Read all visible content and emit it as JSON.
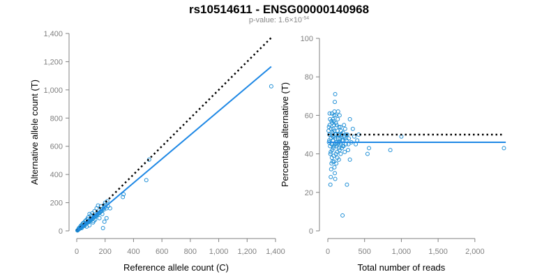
{
  "title": "rs10514611 - ENSG00000140968",
  "subtitle": {
    "prefix": "p-value: 1.6×10",
    "exponent": "-54"
  },
  "colors": {
    "point": "#1f8fd6",
    "fit": "#1e88e5",
    "reference": "#000000",
    "axis": "#808080"
  },
  "chart_data": [
    {
      "type": "scatter",
      "name": "allele-counts",
      "xlabel": "Reference allele count (C)",
      "ylabel": "Alternative allele count (T)",
      "xlim": [
        0,
        1400
      ],
      "ylim": [
        0,
        1400
      ],
      "xticks": [
        0,
        200,
        400,
        600,
        800,
        1000,
        1200,
        1400
      ],
      "xtick_labels": [
        "0",
        "200",
        "400",
        "600",
        "800",
        "1,000",
        "1,200",
        "1,400"
      ],
      "yticks": [
        0,
        200,
        400,
        600,
        800,
        1000,
        1200,
        1400
      ],
      "ytick_labels": [
        "0",
        "200",
        "400",
        "600",
        "800",
        "1,000",
        "1,200",
        "1,400"
      ],
      "reference_line": {
        "style": "dotted",
        "x": [
          0,
          1370
        ],
        "y": [
          0,
          1370
        ]
      },
      "fit_line": {
        "style": "solid",
        "x": [
          0,
          1370
        ],
        "y": [
          0,
          1165
        ]
      },
      "points": [
        [
          1370,
          1025
        ],
        [
          490,
          360
        ],
        [
          510,
          505
        ],
        [
          325,
          240
        ],
        [
          330,
          260
        ],
        [
          215,
          210
        ],
        [
          200,
          200
        ],
        [
          220,
          175
        ],
        [
          235,
          160
        ],
        [
          190,
          150
        ],
        [
          170,
          140
        ],
        [
          210,
          90
        ],
        [
          195,
          65
        ],
        [
          185,
          20
        ],
        [
          160,
          130
        ],
        [
          150,
          120
        ],
        [
          140,
          110
        ],
        [
          130,
          100
        ],
        [
          120,
          95
        ],
        [
          110,
          90
        ],
        [
          100,
          80
        ],
        [
          95,
          70
        ],
        [
          90,
          75
        ],
        [
          85,
          65
        ],
        [
          80,
          60
        ],
        [
          75,
          62
        ],
        [
          70,
          55
        ],
        [
          65,
          50
        ],
        [
          60,
          48
        ],
        [
          55,
          44
        ],
        [
          50,
          40
        ],
        [
          45,
          36
        ],
        [
          40,
          32
        ],
        [
          35,
          28
        ],
        [
          30,
          25
        ],
        [
          25,
          20
        ],
        [
          20,
          16
        ],
        [
          15,
          12
        ],
        [
          12,
          9
        ],
        [
          10,
          8
        ],
        [
          8,
          6
        ],
        [
          6,
          4
        ],
        [
          5,
          3
        ],
        [
          18,
          14
        ],
        [
          22,
          17
        ],
        [
          28,
          21
        ],
        [
          32,
          26
        ],
        [
          38,
          30
        ],
        [
          42,
          34
        ],
        [
          48,
          39
        ],
        [
          52,
          41
        ],
        [
          58,
          46
        ],
        [
          62,
          50
        ],
        [
          68,
          54
        ],
        [
          72,
          57
        ],
        [
          78,
          63
        ],
        [
          82,
          66
        ],
        [
          88,
          70
        ],
        [
          92,
          74
        ],
        [
          98,
          78
        ],
        [
          105,
          83
        ],
        [
          115,
          92
        ],
        [
          125,
          100
        ],
        [
          135,
          108
        ],
        [
          145,
          116
        ],
        [
          155,
          124
        ],
        [
          165,
          132
        ],
        [
          175,
          140
        ],
        [
          180,
          155
        ],
        [
          190,
          160
        ],
        [
          200,
          170
        ],
        [
          120,
          70
        ],
        [
          100,
          110
        ],
        [
          80,
          95
        ],
        [
          60,
          70
        ],
        [
          50,
          58
        ],
        [
          40,
          48
        ],
        [
          30,
          38
        ],
        [
          130,
          80
        ],
        [
          140,
          160
        ],
        [
          110,
          125
        ],
        [
          90,
          40
        ],
        [
          70,
          30
        ],
        [
          45,
          55
        ],
        [
          35,
          20
        ],
        [
          25,
          30
        ],
        [
          15,
          20
        ],
        [
          160,
          90
        ],
        [
          150,
          180
        ],
        [
          170,
          175
        ],
        [
          180,
          120
        ],
        [
          90,
          120
        ],
        [
          115,
          60
        ],
        [
          75,
          85
        ],
        [
          55,
          35
        ],
        [
          65,
          75
        ],
        [
          105,
          100
        ],
        [
          125,
          140
        ],
        [
          200,
          185
        ],
        [
          210,
          160
        ]
      ]
    },
    {
      "type": "scatter",
      "name": "percentage-alternative",
      "xlabel": "Total number of reads",
      "ylabel": "Percentage alternative (T)",
      "xlim": [
        0,
        2400
      ],
      "ylim": [
        0,
        100
      ],
      "xticks": [
        0,
        500,
        1000,
        1500,
        2000
      ],
      "xtick_labels": [
        "0",
        "500",
        "1,000",
        "1,500",
        "2,000"
      ],
      "yticks": [
        0,
        20,
        40,
        60,
        80,
        100
      ],
      "ytick_labels": [
        "0",
        "20",
        "40",
        "60",
        "80",
        "100"
      ],
      "reference_line": {
        "style": "dotted",
        "x": [
          0,
          2380
        ],
        "y": [
          50,
          50
        ]
      },
      "fit_line": {
        "style": "solid",
        "x": [
          0,
          2420
        ],
        "y": [
          46,
          46
        ]
      },
      "points": [
        [
          2395,
          43
        ],
        [
          1000,
          49
        ],
        [
          850,
          42
        ],
        [
          560,
          43
        ],
        [
          540,
          40
        ],
        [
          420,
          50
        ],
        [
          400,
          47
        ],
        [
          380,
          45
        ],
        [
          360,
          49
        ],
        [
          340,
          53
        ],
        [
          320,
          46
        ],
        [
          300,
          58
        ],
        [
          300,
          37
        ],
        [
          280,
          45
        ],
        [
          260,
          24
        ],
        [
          250,
          50
        ],
        [
          240,
          48
        ],
        [
          230,
          41
        ],
        [
          220,
          55
        ],
        [
          210,
          47
        ],
        [
          200,
          8
        ],
        [
          200,
          44
        ],
        [
          190,
          50
        ],
        [
          180,
          52
        ],
        [
          170,
          46
        ],
        [
          160,
          60
        ],
        [
          150,
          43
        ],
        [
          140,
          48
        ],
        [
          130,
          38
        ],
        [
          120,
          55
        ],
        [
          110,
          50
        ],
        [
          100,
          71
        ],
        [
          95,
          67
        ],
        [
          90,
          62
        ],
        [
          85,
          60
        ],
        [
          80,
          57
        ],
        [
          75,
          53
        ],
        [
          70,
          49
        ],
        [
          65,
          45
        ],
        [
          60,
          42
        ],
        [
          55,
          38
        ],
        [
          50,
          35
        ],
        [
          45,
          32
        ],
        [
          40,
          28
        ],
        [
          35,
          24
        ],
        [
          30,
          58
        ],
        [
          25,
          55
        ],
        [
          20,
          50
        ],
        [
          15,
          46
        ],
        [
          10,
          52
        ],
        [
          55,
          61
        ],
        [
          60,
          56
        ],
        [
          65,
          51
        ],
        [
          70,
          47
        ],
        [
          75,
          43
        ],
        [
          80,
          39
        ],
        [
          85,
          36
        ],
        [
          90,
          33
        ],
        [
          95,
          30
        ],
        [
          100,
          27
        ],
        [
          105,
          45
        ],
        [
          110,
          40
        ],
        [
          115,
          35
        ],
        [
          120,
          44
        ],
        [
          125,
          41
        ],
        [
          130,
          52
        ],
        [
          135,
          58
        ],
        [
          140,
          62
        ],
        [
          145,
          46
        ],
        [
          150,
          37
        ],
        [
          155,
          50
        ],
        [
          160,
          42
        ],
        [
          165,
          48
        ],
        [
          170,
          54
        ],
        [
          175,
          40
        ],
        [
          180,
          45
        ],
        [
          185,
          49
        ],
        [
          190,
          43
        ],
        [
          195,
          47
        ],
        [
          205,
          51
        ],
        [
          215,
          44
        ],
        [
          225,
          49
        ],
        [
          235,
          53
        ],
        [
          245,
          45
        ],
        [
          255,
          47
        ],
        [
          265,
          50
        ],
        [
          275,
          42
        ],
        [
          285,
          48
        ],
        [
          40,
          48
        ],
        [
          45,
          53
        ],
        [
          50,
          57
        ],
        [
          30,
          44
        ],
        [
          35,
          40
        ],
        [
          25,
          61
        ],
        [
          20,
          47
        ],
        [
          15,
          54
        ],
        [
          60,
          50
        ],
        [
          70,
          58
        ],
        [
          80,
          44
        ],
        [
          90,
          52
        ],
        [
          100,
          48
        ],
        [
          110,
          56
        ],
        [
          120,
          46
        ],
        [
          130,
          45
        ],
        [
          140,
          50
        ],
        [
          150,
          54
        ],
        [
          50,
          45
        ],
        [
          40,
          41
        ],
        [
          65,
          36
        ],
        [
          85,
          55
        ],
        [
          95,
          49
        ],
        [
          105,
          60
        ]
      ]
    }
  ]
}
